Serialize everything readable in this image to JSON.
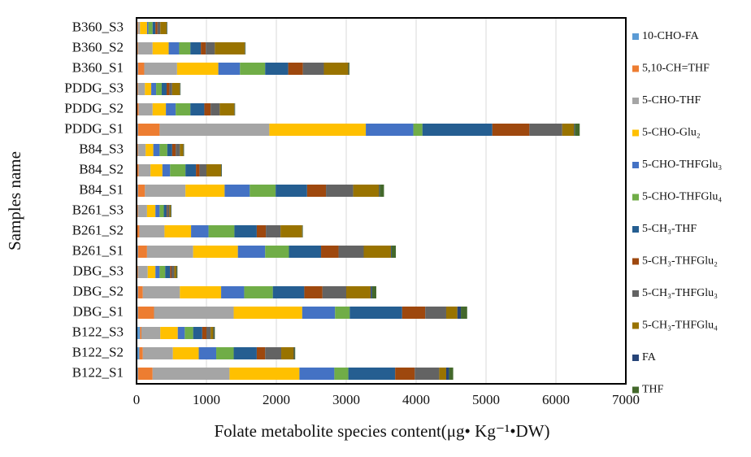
{
  "chart_data": {
    "type": "stacked-bar-horizontal",
    "x_label": "Folate metabolite species content(μg• Kg⁻¹•DW)",
    "y_label": "Samples name",
    "categories": [
      "B122_S1",
      "B122_S2",
      "B122_S3",
      "DBG_S1",
      "DBG_S2",
      "DBG_S3",
      "B261_S1",
      "B261_S2",
      "B261_S3",
      "B84_S1",
      "B84_S2",
      "B84_S3",
      "PDDG_S1",
      "PDDG_S2",
      "PDDG_S3",
      "B360_S1",
      "B360_S2",
      "B360_S3"
    ],
    "xlim": [
      0,
      7000
    ],
    "xticks": [
      0,
      1000,
      2000,
      3000,
      4000,
      5000,
      6000,
      7000
    ],
    "grid": true,
    "legend": "right",
    "series": [
      {
        "name": "10-CHO-FA",
        "color": "#5b9bd5",
        "values": [
          20,
          40,
          50,
          20,
          20,
          10,
          20,
          10,
          10,
          20,
          10,
          10,
          20,
          10,
          10,
          20,
          10,
          10
        ]
      },
      {
        "name": "5,10-CH=THF",
        "color": "#ed7d31",
        "values": [
          210,
          50,
          20,
          230,
          70,
          10,
          130,
          30,
          10,
          100,
          20,
          10,
          310,
          20,
          10,
          90,
          10,
          10
        ]
      },
      {
        "name": "5-CHO-THF",
        "color": "#a5a5a5",
        "values": [
          1100,
          430,
          270,
          1140,
          530,
          140,
          660,
          360,
          130,
          580,
          170,
          110,
          1570,
          200,
          100,
          470,
          210,
          30
        ]
      },
      {
        "name": "5-CHO-Glu₂",
        "color": "#ffc000",
        "values": [
          1000,
          370,
          250,
          980,
          590,
          110,
          640,
          380,
          120,
          560,
          170,
          110,
          1380,
          190,
          90,
          590,
          230,
          100
        ]
      },
      {
        "name": "5-CHO-THFGlu₃",
        "color": "#4472c4",
        "values": [
          500,
          250,
          100,
          470,
          330,
          60,
          390,
          250,
          60,
          360,
          110,
          90,
          680,
          140,
          70,
          310,
          150,
          20
        ]
      },
      {
        "name": "5-CHO-THFGlu₄",
        "color": "#70ad47",
        "values": [
          200,
          250,
          120,
          210,
          410,
          80,
          340,
          370,
          60,
          370,
          220,
          110,
          130,
          210,
          80,
          360,
          160,
          60
        ]
      },
      {
        "name": "5-CH₃-THF",
        "color": "#255e91",
        "values": [
          670,
          330,
          130,
          750,
          450,
          70,
          460,
          320,
          40,
          450,
          150,
          70,
          1000,
          200,
          70,
          330,
          150,
          40
        ]
      },
      {
        "name": "5-CH₃-THFGlu₂",
        "color": "#9e480e",
        "values": [
          280,
          120,
          60,
          330,
          260,
          20,
          250,
          130,
          10,
          270,
          50,
          50,
          530,
          90,
          40,
          210,
          70,
          30
        ]
      },
      {
        "name": "5-CH₃-THFGlu₃",
        "color": "#636363",
        "values": [
          350,
          230,
          60,
          300,
          340,
          40,
          360,
          210,
          30,
          390,
          100,
          60,
          470,
          130,
          40,
          300,
          130,
          40
        ]
      },
      {
        "name": "5-CH₃-THFGlu₄",
        "color": "#997300",
        "values": [
          100,
          180,
          40,
          160,
          350,
          30,
          390,
          310,
          20,
          370,
          210,
          50,
          170,
          210,
          110,
          350,
          430,
          90
        ]
      },
      {
        "name": "FA",
        "color": "#264478",
        "values": [
          40,
          10,
          10,
          50,
          20,
          5,
          10,
          5,
          5,
          10,
          5,
          5,
          10,
          5,
          5,
          5,
          5,
          5
        ]
      },
      {
        "name": "THF",
        "color": "#43682b",
        "values": [
          60,
          10,
          10,
          90,
          60,
          10,
          60,
          5,
          5,
          60,
          5,
          5,
          70,
          5,
          5,
          10,
          5,
          5
        ]
      }
    ]
  }
}
